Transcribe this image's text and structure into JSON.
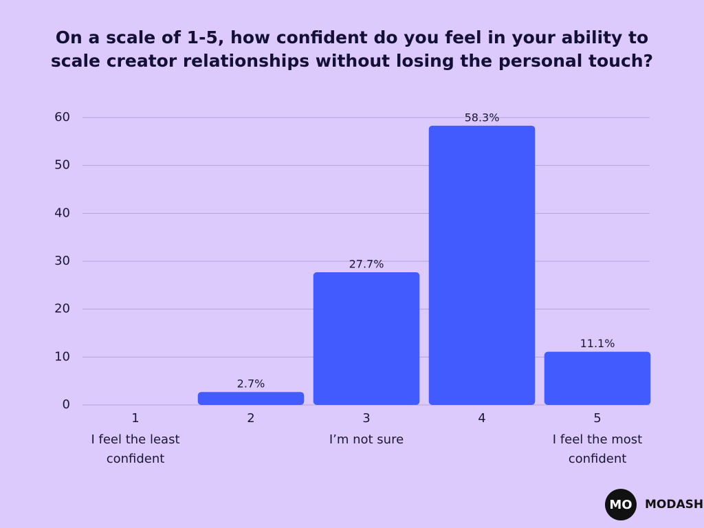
{
  "chart_data": {
    "type": "bar",
    "title": "On a scale of 1-5, how confident do you feel in your ability to scale creator relationships without losing the personal touch?",
    "categories": [
      "1",
      "2",
      "3",
      "4",
      "5"
    ],
    "category_descriptions": [
      "I feel the least confident",
      null,
      "I’m not sure",
      null,
      "I feel the most confident"
    ],
    "values": [
      0,
      2.7,
      27.7,
      58.3,
      11.1
    ],
    "value_labels": [
      null,
      "2.7%",
      "27.7%",
      "58.3%",
      "11.1%"
    ],
    "color": "#425bff",
    "ylim": [
      0,
      60
    ],
    "yticks": [
      0,
      10,
      20,
      30,
      40,
      50,
      60
    ],
    "grid": true
  },
  "logo": {
    "mark": "MO",
    "text": "MODASH"
  }
}
